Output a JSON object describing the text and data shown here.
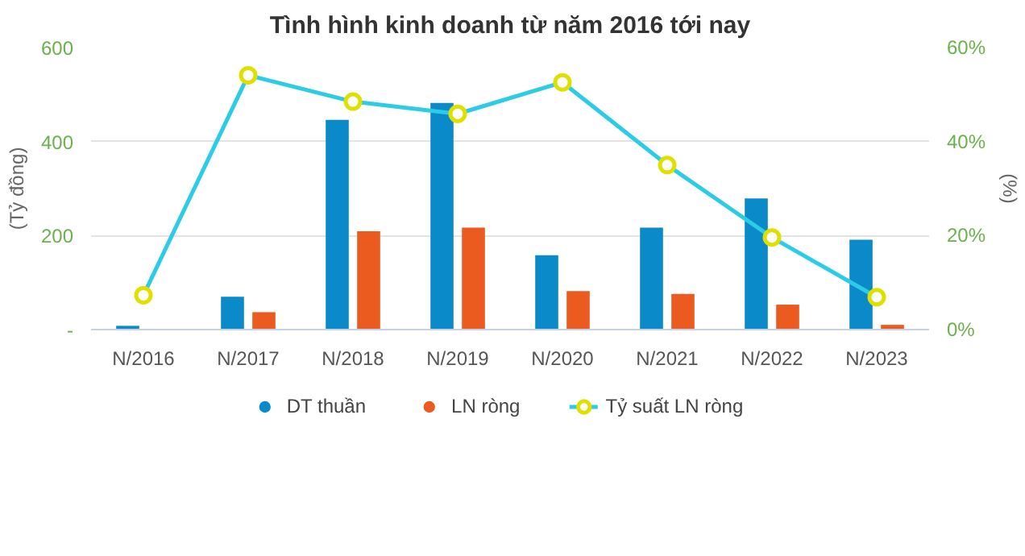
{
  "chart_data": {
    "type": "bar",
    "title": "Tình hình kinh doanh từ năm 2016 tới nay",
    "ylabel": "(Tỷ đồng)",
    "y2label": "(%)",
    "categories": [
      "N/2016",
      "N/2017",
      "N/2018",
      "N/2019",
      "N/2020",
      "N/2021",
      "N/2022",
      "N/2023"
    ],
    "series": [
      {
        "name": "DT thuần",
        "color": "#0a8ac8",
        "values": [
          8,
          70,
          446,
          482,
          158,
          217,
          279,
          191
        ]
      },
      {
        "name": "LN ròng",
        "color": "#eb5a1f",
        "values": [
          null,
          37,
          209,
          217,
          82,
          76,
          53,
          10
        ]
      },
      {
        "name": "Tỷ suất LN ròng",
        "type": "line",
        "axis": "y2",
        "color": "#2ccbe6",
        "marker": "circle",
        "values": [
          7.3,
          54.1,
          48.5,
          45.9,
          52.6,
          35.0,
          19.6,
          6.9
        ]
      }
    ],
    "ylim": [
      0,
      600
    ],
    "yticks": [
      {
        "value": 0,
        "label": "-"
      },
      {
        "value": 200,
        "label": "200"
      },
      {
        "value": 400,
        "label": "400"
      },
      {
        "value": 600,
        "label": "600"
      }
    ],
    "y2lim": [
      0,
      60
    ],
    "y2ticks": [
      {
        "value": 0,
        "label": "0%"
      },
      {
        "value": 20,
        "label": "20%"
      },
      {
        "value": 40,
        "label": "40%"
      },
      {
        "value": 60,
        "label": "60%"
      }
    ],
    "grid": "y",
    "legend": "bottom"
  }
}
